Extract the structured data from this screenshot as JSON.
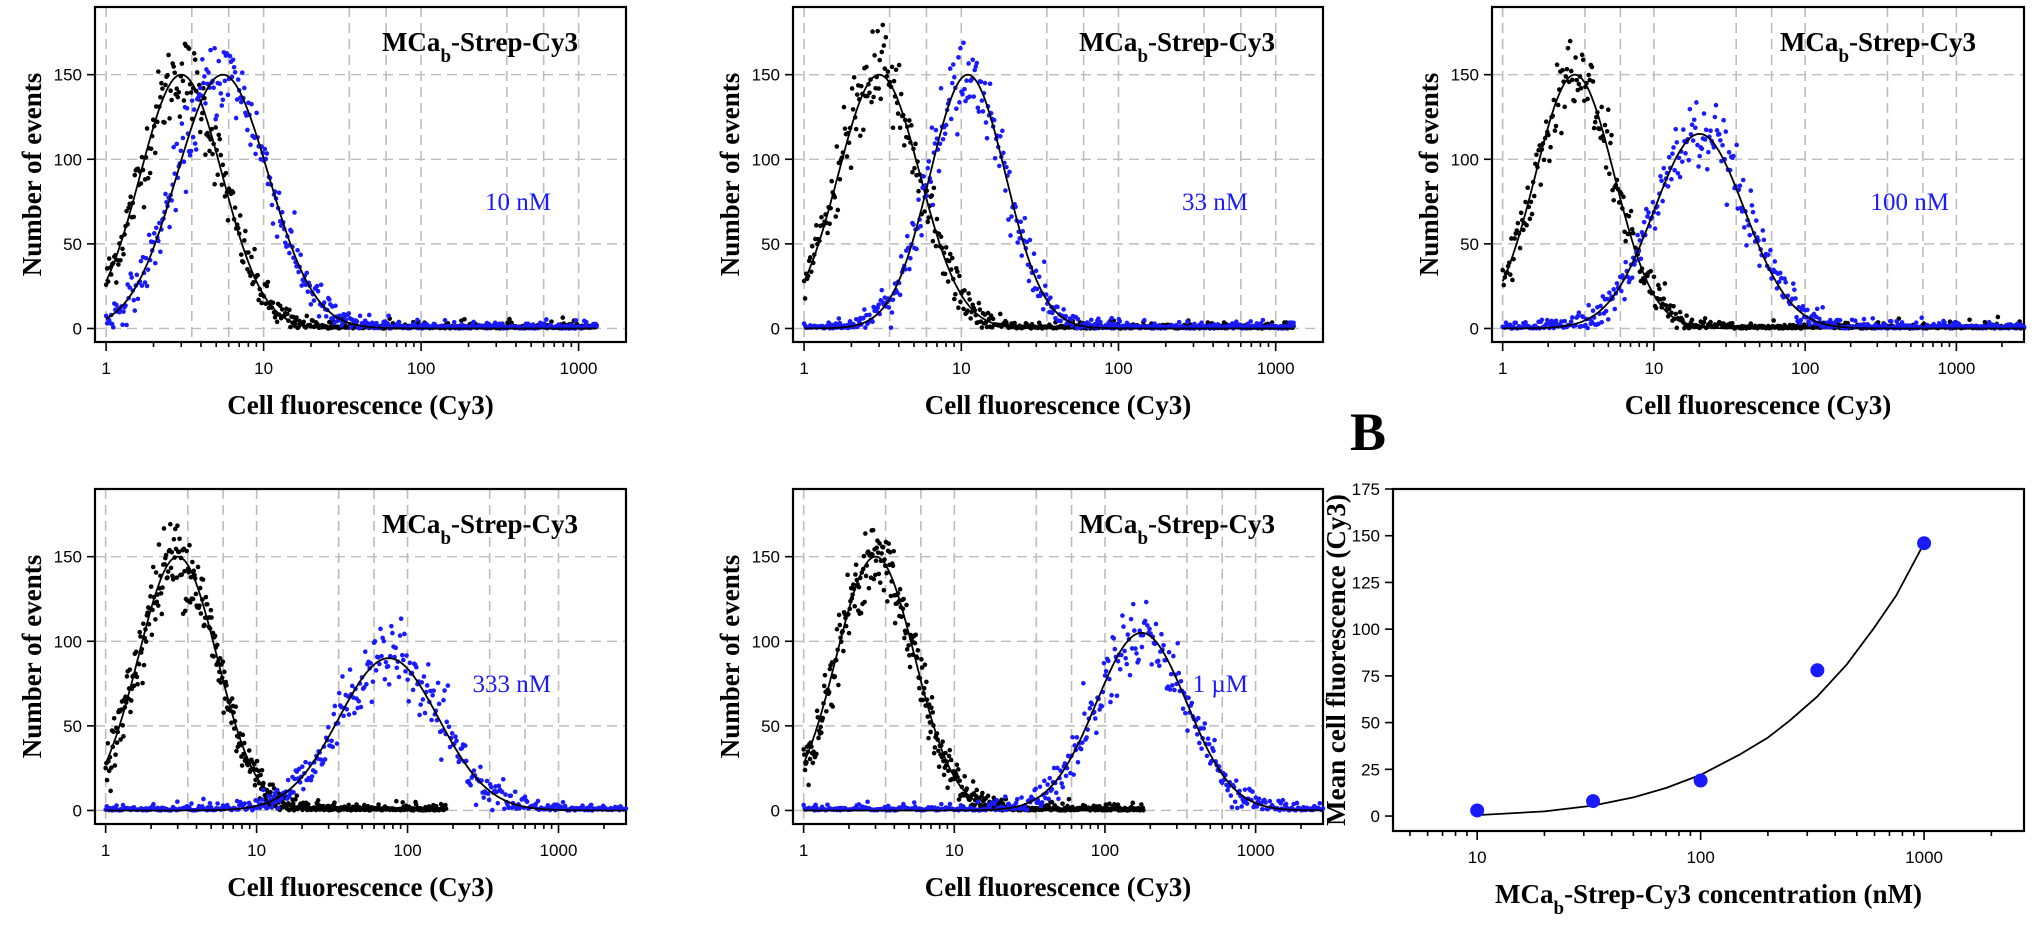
{
  "colors": {
    "control": "#000000",
    "treated": "#1a1aff",
    "grid": "#bdbdbd"
  },
  "panel_B_label": "B",
  "chart_data": [
    {
      "type": "scatter",
      "title": "MCab-Strep-Cy3",
      "title_main": "MCa",
      "title_sub": "b",
      "title_rest": "-Strep-Cy3",
      "annotation": "10 nM",
      "xlabel": "Cell fluorescence (Cy3)",
      "ylabel": "Number of events",
      "xscale": "log",
      "xlim": [
        0.85,
        2000
      ],
      "ylim": [
        -8,
        190
      ],
      "xticks": [
        1,
        10,
        100,
        1000
      ],
      "xticklabels": [
        "1",
        "10",
        "100",
        "1000"
      ],
      "yticks": [
        0,
        50,
        100,
        150
      ],
      "yticklabels": [
        "0",
        "50",
        "100",
        "150"
      ],
      "grid": true,
      "series": [
        {
          "role": "control",
          "peak": 150,
          "center": 3.0,
          "log_sigma": 0.26,
          "xmax": 1300
        },
        {
          "role": "treated",
          "peak": 150,
          "center": 5.5,
          "log_sigma": 0.29,
          "xmax": 1300
        }
      ]
    },
    {
      "type": "scatter",
      "title": "MCab-Strep-Cy3",
      "title_main": "MCa",
      "title_sub": "b",
      "title_rest": "-Strep-Cy3",
      "annotation": "33 nM",
      "xlabel": "Cell fluorescence (Cy3)",
      "ylabel": "Number of events",
      "xscale": "log",
      "xlim": [
        0.85,
        2000
      ],
      "ylim": [
        -8,
        190
      ],
      "xticks": [
        1,
        10,
        100,
        1000
      ],
      "xticklabels": [
        "1",
        "10",
        "100",
        "1000"
      ],
      "yticks": [
        0,
        50,
        100,
        150
      ],
      "yticklabels": [
        "0",
        "50",
        "100",
        "150"
      ],
      "grid": true,
      "series": [
        {
          "role": "control",
          "peak": 150,
          "center": 3.0,
          "log_sigma": 0.26,
          "xmax": 1300
        },
        {
          "role": "treated",
          "peak": 150,
          "center": 11.0,
          "log_sigma": 0.24,
          "xmax": 1300
        }
      ]
    },
    {
      "type": "scatter",
      "title": "MCab-Strep-Cy3",
      "title_main": "MCa",
      "title_sub": "b",
      "title_rest": "-Strep-Cy3",
      "annotation": "100 nM",
      "xlabel": "Cell fluorescence (Cy3)",
      "ylabel": "Number of events",
      "xscale": "log",
      "xlim": [
        0.85,
        2800
      ],
      "ylim": [
        -8,
        190
      ],
      "xticks": [
        1,
        10,
        100,
        1000
      ],
      "xticklabels": [
        "1",
        "10",
        "100",
        "1000"
      ],
      "yticks": [
        0,
        50,
        100,
        150
      ],
      "yticklabels": [
        "0",
        "50",
        "100",
        "150"
      ],
      "grid": true,
      "series": [
        {
          "role": "control",
          "peak": 150,
          "center": 3.0,
          "log_sigma": 0.26,
          "xmax": 2800
        },
        {
          "role": "treated",
          "peak": 115,
          "center": 20.0,
          "log_sigma": 0.3,
          "xmax": 2800
        }
      ]
    },
    {
      "type": "scatter",
      "title": "MCab-Strep-Cy3",
      "title_main": "MCa",
      "title_sub": "b",
      "title_rest": "-Strep-Cy3",
      "annotation": "333 nM",
      "xlabel": "Cell fluorescence (Cy3)",
      "ylabel": "Number of events",
      "xscale": "log",
      "xlim": [
        0.85,
        2800
      ],
      "ylim": [
        -8,
        190
      ],
      "xticks": [
        1,
        10,
        100,
        1000
      ],
      "xticklabels": [
        "1",
        "10",
        "100",
        "1000"
      ],
      "yticks": [
        0,
        50,
        100,
        150
      ],
      "yticklabels": [
        "0",
        "50",
        "100",
        "150"
      ],
      "grid": true,
      "series": [
        {
          "role": "control",
          "peak": 150,
          "center": 3.0,
          "log_sigma": 0.26,
          "xmax": 180
        },
        {
          "role": "treated",
          "peak": 90,
          "center": 75.0,
          "log_sigma": 0.33,
          "xmax": 2800
        }
      ]
    },
    {
      "type": "scatter",
      "title": "MCab-Strep-Cy3",
      "title_main": "MCa",
      "title_sub": "b",
      "title_rest": "-Strep-Cy3",
      "annotation": "1 µM",
      "xlabel": "Cell fluorescence (Cy3)",
      "ylabel": "Number of events",
      "xscale": "log",
      "xlim": [
        0.85,
        2800
      ],
      "ylim": [
        -8,
        190
      ],
      "xticks": [
        1,
        10,
        100,
        1000
      ],
      "xticklabels": [
        "1",
        "10",
        "100",
        "1000"
      ],
      "yticks": [
        0,
        50,
        100,
        150
      ],
      "yticklabels": [
        "0",
        "50",
        "100",
        "150"
      ],
      "grid": true,
      "series": [
        {
          "role": "control",
          "peak": 150,
          "center": 3.0,
          "log_sigma": 0.26,
          "xmax": 180
        },
        {
          "role": "treated",
          "peak": 105,
          "center": 175.0,
          "log_sigma": 0.3,
          "xmax": 2800
        }
      ]
    },
    {
      "type": "scatter",
      "xlabel": "MCab-Strep-Cy3 concentration (nM)",
      "xlabel_main": "MCa",
      "xlabel_sub": "b",
      "xlabel_rest": "-Strep-Cy3 concentration (nM)",
      "ylabel": "Mean cell fluorescence (Cy3)",
      "xscale": "log",
      "xlim": [
        4.2,
        2800
      ],
      "ylim": [
        -8,
        175
      ],
      "xticks": [
        10,
        100,
        1000
      ],
      "xticklabels": [
        "10",
        "100",
        "1000"
      ],
      "yticks": [
        0,
        25,
        50,
        75,
        100,
        125,
        150,
        175
      ],
      "yticklabels": [
        "0",
        "25",
        "50",
        "75",
        "100",
        "125",
        "150",
        "175"
      ],
      "grid": false,
      "x": [
        10,
        33,
        100,
        333,
        1000
      ],
      "y": [
        3,
        8,
        19,
        78,
        146
      ],
      "fit": {
        "kind": "power",
        "x": [
          10,
          20,
          33,
          50,
          70,
          100,
          150,
          200,
          250,
          333,
          450,
          600,
          750,
          1000
        ],
        "y": [
          0.5,
          2.5,
          5.6,
          10,
          15,
          22,
          33,
          42,
          51,
          64,
          81,
          101,
          118,
          146
        ]
      }
    }
  ]
}
